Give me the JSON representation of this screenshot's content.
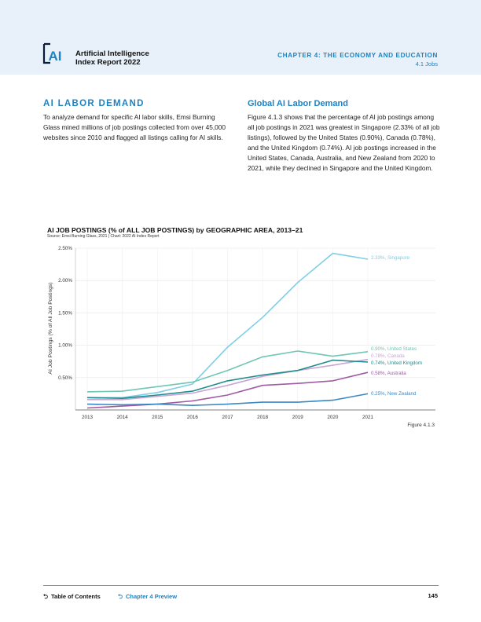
{
  "header": {
    "logo_text": "AI",
    "report_title_line1": "Artificial Intelligence",
    "report_title_line2": "Index Report 2022",
    "chapter": "CHAPTER 4: THE ECONOMY AND EDUCATION",
    "chapter_sub": "4.1 Jobs"
  },
  "left": {
    "heading": "AI LABOR DEMAND",
    "body": "To analyze demand for specific AI labor skills, Emsi Burning Glass mined millions of job postings collected from over 45,000 websites since 2010 and flagged all listings calling for AI skills."
  },
  "right": {
    "heading": "Global AI Labor Demand",
    "body": "Figure 4.1.3 shows that the percentage of AI job postings among all job postings in 2021 was greatest in Singapore (2.33% of all job listings), followed by the United States (0.90%), Canada (0.78%), and the United Kingdom (0.74%). AI job postings increased in the United States, Canada, Australia, and New Zealand from 2020 to 2021, while they declined in Singapore and the United Kingdom."
  },
  "chart": {
    "title": "AI JOB POSTINGS (% of ALL JOB POSTINGS) by GEOGRAPHIC AREA, 2013–21",
    "source": "Source: Emsi Burning Glass, 2021 | Chart: 2022 AI Index Report",
    "figure_label": "Figure 4.1.3"
  },
  "chart_data": {
    "type": "line",
    "title": "AI JOB POSTINGS (% of ALL JOB POSTINGS) by GEOGRAPHIC AREA, 2013–21",
    "xlabel": "",
    "ylabel": "AI Job Postings (% of All Job Postings)",
    "x": [
      "2013",
      "2014",
      "2015",
      "2016",
      "2017",
      "2018",
      "2019",
      "2020",
      "2021"
    ],
    "yticks": [
      "0.50%",
      "1.00%",
      "1.50%",
      "2.00%",
      "2.50%"
    ],
    "ylim": [
      0,
      2.5
    ],
    "grid": true,
    "series": [
      {
        "name": "Singapore",
        "label": "2.33%, Singapore",
        "color": "#7ecfe6",
        "values": [
          0.19,
          0.19,
          0.27,
          0.4,
          0.97,
          1.43,
          1.97,
          2.42,
          2.33
        ]
      },
      {
        "name": "United States",
        "label": "0.90%, United States",
        "color": "#6fc6b3",
        "values": [
          0.28,
          0.29,
          0.36,
          0.43,
          0.61,
          0.82,
          0.91,
          0.83,
          0.9
        ]
      },
      {
        "name": "Canada",
        "label": "0.78%, Canada",
        "color": "#c9a6d3",
        "values": [
          0.16,
          0.16,
          0.21,
          0.26,
          0.38,
          0.52,
          0.61,
          0.69,
          0.78
        ]
      },
      {
        "name": "United Kingdom",
        "label": "0.74%, United Kingdom",
        "color": "#1e8d8c",
        "values": [
          0.19,
          0.18,
          0.23,
          0.29,
          0.45,
          0.54,
          0.61,
          0.77,
          0.74
        ]
      },
      {
        "name": "Australia",
        "label": "0.58%, Australia",
        "color": "#a05aa3",
        "values": [
          0.03,
          0.06,
          0.09,
          0.14,
          0.23,
          0.38,
          0.41,
          0.45,
          0.58
        ]
      },
      {
        "name": "New Zealand",
        "label": "0.25%, New Zealand",
        "color": "#3a88c4",
        "values": [
          0.09,
          0.08,
          0.09,
          0.07,
          0.09,
          0.12,
          0.12,
          0.15,
          0.25
        ]
      }
    ]
  },
  "footer": {
    "toc_label": "Table of Contents",
    "preview_label": "Chapter 4 Preview",
    "page_number": "145"
  }
}
